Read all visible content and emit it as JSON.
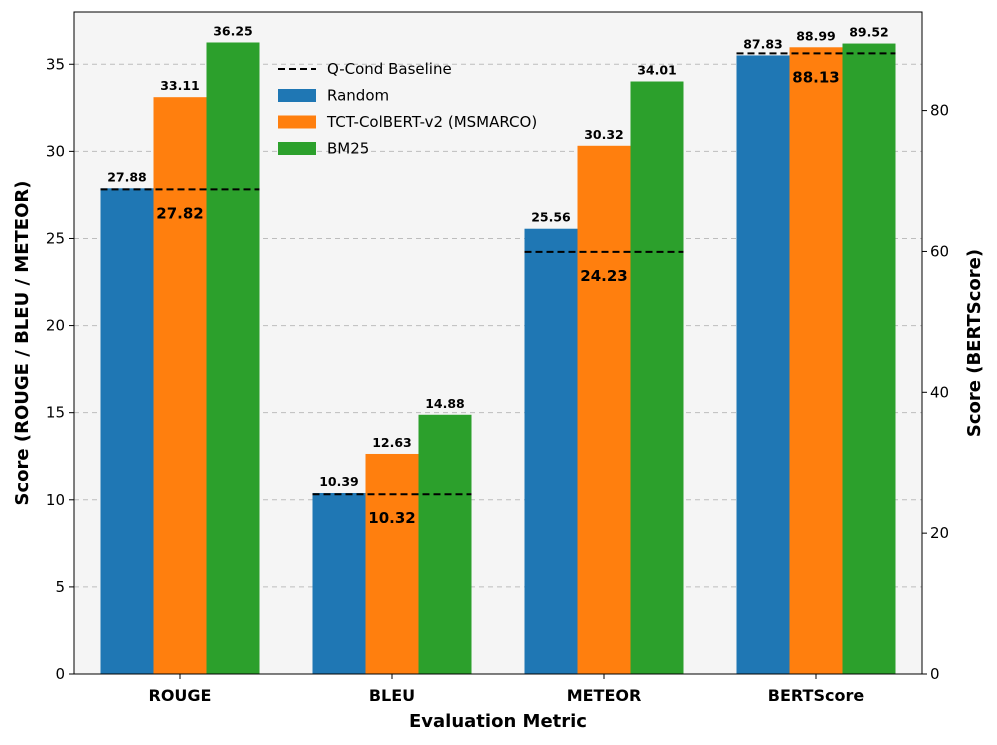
{
  "chart_data": {
    "type": "bar",
    "categories": [
      "ROUGE",
      "BLEU",
      "METEOR",
      "BERTScore"
    ],
    "xlabel": "Evaluation Metric",
    "ylabel_left": "Score (ROUGE / BLEU / METEOR)",
    "ylabel_right": "Score (BERTScore)",
    "ylim_left": [
      0,
      38
    ],
    "ylim_right": [
      0,
      94
    ],
    "yticks_left": [
      0,
      5,
      10,
      15,
      20,
      25,
      30,
      35
    ],
    "yticks_right": [
      0,
      20,
      40,
      60,
      80
    ],
    "right_axis_categories": [
      "BERTScore"
    ],
    "grid": "horizontal-dashed",
    "legend_position": "top-center",
    "series": [
      {
        "name": "Random",
        "color": "#1f77b4",
        "values": [
          27.88,
          10.39,
          25.56,
          87.83
        ],
        "labels": [
          "27.88",
          "10.39",
          "25.56",
          "87.83"
        ]
      },
      {
        "name": "TCT-ColBERT-v2 (MSMARCO)",
        "color": "#ff7f0e",
        "values": [
          33.11,
          12.63,
          30.32,
          88.99
        ],
        "labels": [
          "33.11",
          "12.63",
          "30.32",
          "88.99"
        ]
      },
      {
        "name": "BM25",
        "color": "#2ca02c",
        "values": [
          36.25,
          14.88,
          34.01,
          89.52
        ],
        "labels": [
          "36.25",
          "14.88",
          "34.01",
          "89.52"
        ]
      }
    ],
    "baseline": {
      "name": "Q-Cond Baseline",
      "color": "#000000",
      "values": [
        27.82,
        10.32,
        24.23,
        88.13
      ],
      "labels": [
        "27.82",
        "10.32",
        "24.23",
        "88.13"
      ]
    }
  }
}
